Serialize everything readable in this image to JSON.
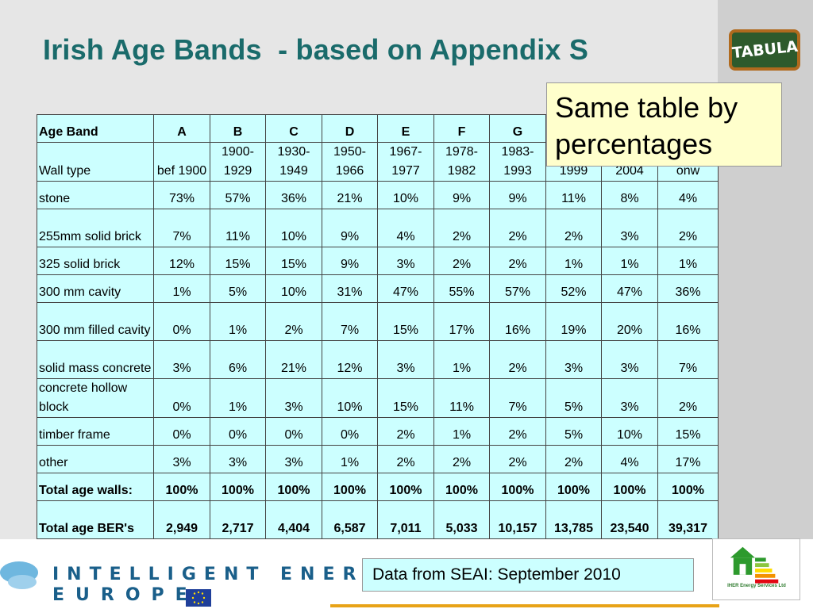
{
  "title": "Irish Age Bands  - based on Appendix S",
  "logo_tabula": "TABULA",
  "callout": "Same table by percentages",
  "table": {
    "header_row": [
      "Age Band",
      "A",
      "B",
      "C",
      "D",
      "E",
      "F",
      "G",
      "",
      "",
      ""
    ],
    "years_row": [
      "Wall type",
      "bef 1900",
      "1900-1929",
      "1930-1949",
      "1950-1966",
      "1967-1977",
      "1978-1982",
      "1983-1993",
      "1999",
      "2004",
      "onw"
    ],
    "rows": [
      [
        "stone",
        "73%",
        "57%",
        "36%",
        "21%",
        "10%",
        "9%",
        "9%",
        "11%",
        "8%",
        "4%"
      ],
      [
        "255mm solid brick",
        "7%",
        "11%",
        "10%",
        "9%",
        "4%",
        "2%",
        "2%",
        "2%",
        "3%",
        "2%"
      ],
      [
        "325 solid brick",
        "12%",
        "15%",
        "15%",
        "9%",
        "3%",
        "2%",
        "2%",
        "1%",
        "1%",
        "1%"
      ],
      [
        "300 mm cavity",
        "1%",
        "5%",
        "10%",
        "31%",
        "47%",
        "55%",
        "57%",
        "52%",
        "47%",
        "36%"
      ],
      [
        "300 mm filled cavity",
        "0%",
        "1%",
        "2%",
        "7%",
        "15%",
        "17%",
        "16%",
        "19%",
        "20%",
        "16%"
      ],
      [
        "solid mass concrete",
        "3%",
        "6%",
        "21%",
        "12%",
        "3%",
        "1%",
        "2%",
        "3%",
        "3%",
        "7%"
      ],
      [
        "concrete hollow block",
        "0%",
        "1%",
        "3%",
        "10%",
        "15%",
        "11%",
        "7%",
        "5%",
        "3%",
        "2%"
      ],
      [
        "timber frame",
        "0%",
        "0%",
        "0%",
        "0%",
        "2%",
        "1%",
        "2%",
        "5%",
        "10%",
        "15%"
      ],
      [
        "other",
        "3%",
        "3%",
        "3%",
        "1%",
        "2%",
        "2%",
        "2%",
        "2%",
        "4%",
        "17%"
      ]
    ],
    "total_walls": [
      "Total age walls:",
      "100%",
      "100%",
      "100%",
      "100%",
      "100%",
      "100%",
      "100%",
      "100%",
      "100%",
      "100%"
    ],
    "total_bers": [
      "Total age BER's",
      "2,949",
      "2,717",
      "4,404",
      "6,587",
      "7,011",
      "5,033",
      "10,157",
      "13,785",
      "23,540",
      "39,317"
    ]
  },
  "footer": {
    "ie_line1": "INTELLIGENT ENERGY",
    "ie_line2": "EUROPE",
    "source": "Data from SEAI: September 2010",
    "iher_caption": "IHER Energy Services Ltd"
  },
  "colors": {
    "title": "#1a6b6b",
    "table_bg": "#ccffff",
    "callout_bg": "#ffffcc",
    "accent_line": "#e8a317"
  }
}
